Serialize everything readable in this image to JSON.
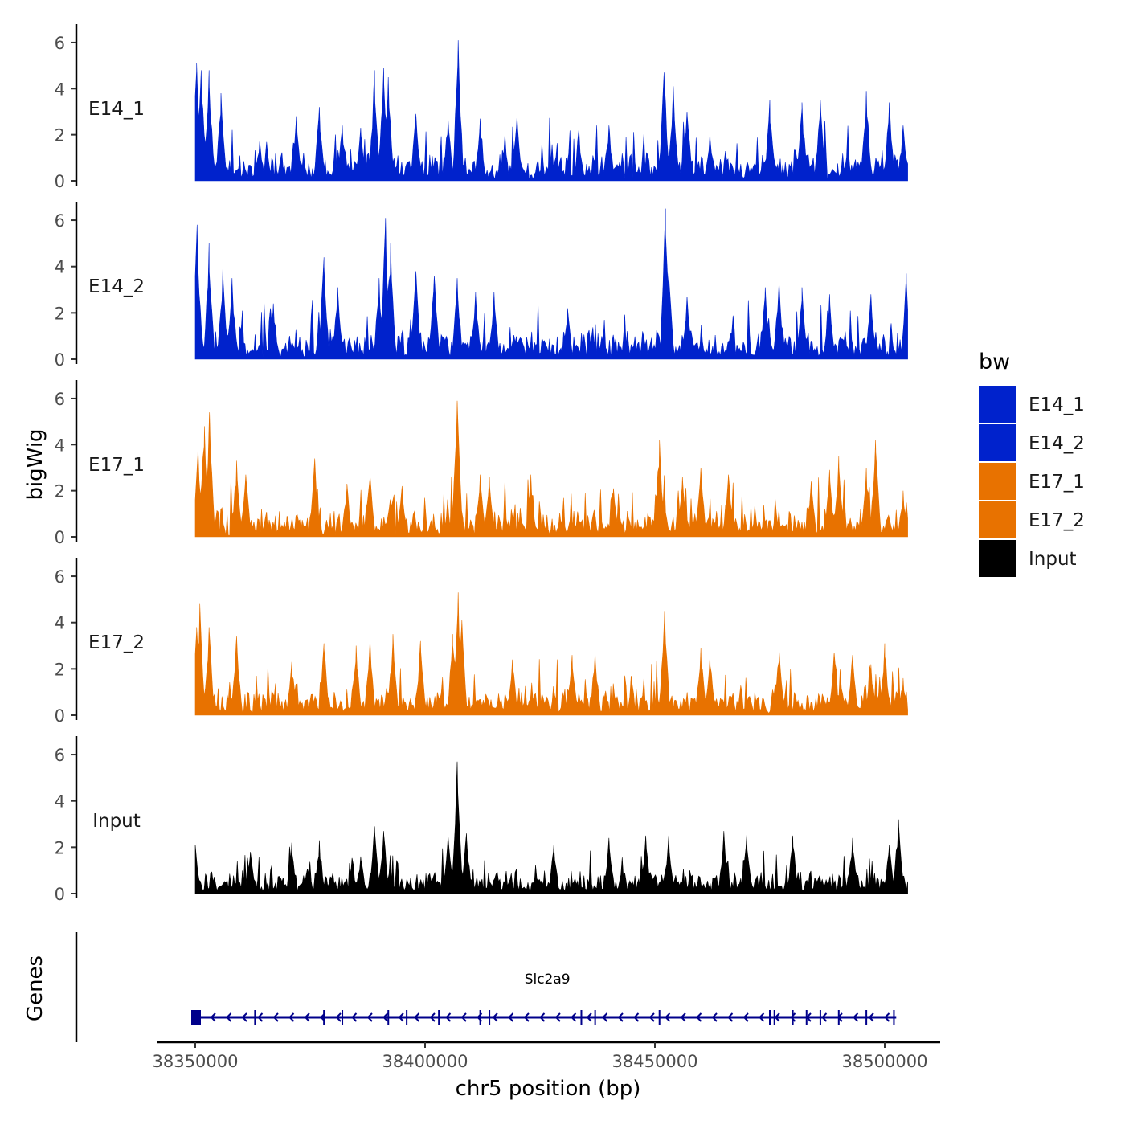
{
  "chart_data": {
    "type": "area",
    "chromosome": "chr5",
    "xlabel": "chr5 position (bp)",
    "ylabel": "bigWig",
    "genes_label": "Genes",
    "xlim": [
      38350000,
      38505000
    ],
    "x_ticks": [
      38350000,
      38400000,
      38450000,
      38500000
    ],
    "x_tick_labels": [
      "38350000",
      "38400000",
      "38450000",
      "38500000"
    ],
    "ylim": [
      0,
      6.8
    ],
    "y_ticks": [
      0,
      2,
      4,
      6
    ],
    "y_tick_labels": [
      "0",
      "2",
      "4",
      "6"
    ],
    "legend": {
      "title": "bw",
      "position": "right",
      "entries": [
        {
          "name": "E14_1",
          "color": "#0022CC"
        },
        {
          "name": "E14_2",
          "color": "#0022CC"
        },
        {
          "name": "E17_1",
          "color": "#E87200"
        },
        {
          "name": "E17_2",
          "color": "#E87200"
        },
        {
          "name": "Input",
          "color": "#000000"
        }
      ]
    },
    "tracks": [
      {
        "name": "E14_1",
        "color": "#0022CC",
        "base": 1.2,
        "seed": 11,
        "peaks": [
          {
            "x": 38350300,
            "y": 5.1
          },
          {
            "x": 38351300,
            "y": 4.8
          },
          {
            "x": 38353000,
            "y": 4.8
          },
          {
            "x": 38355600,
            "y": 3.8
          },
          {
            "x": 38364000,
            "y": 1.7
          },
          {
            "x": 38372000,
            "y": 2.8
          },
          {
            "x": 38377000,
            "y": 3.2
          },
          {
            "x": 38382000,
            "y": 2.4
          },
          {
            "x": 38386000,
            "y": 2.3
          },
          {
            "x": 38389000,
            "y": 4.8
          },
          {
            "x": 38391000,
            "y": 4.9
          },
          {
            "x": 38392000,
            "y": 4.5
          },
          {
            "x": 38398000,
            "y": 2.9
          },
          {
            "x": 38405000,
            "y": 2.7
          },
          {
            "x": 38407200,
            "y": 6.1
          },
          {
            "x": 38412000,
            "y": 2.7
          },
          {
            "x": 38420000,
            "y": 2.8
          },
          {
            "x": 38440000,
            "y": 2.4
          },
          {
            "x": 38452000,
            "y": 4.7
          },
          {
            "x": 38454000,
            "y": 4.1
          },
          {
            "x": 38457000,
            "y": 3.0
          },
          {
            "x": 38462000,
            "y": 2.1
          },
          {
            "x": 38475000,
            "y": 3.5
          },
          {
            "x": 38482000,
            "y": 3.4
          },
          {
            "x": 38486000,
            "y": 3.5
          },
          {
            "x": 38496000,
            "y": 3.9
          },
          {
            "x": 38501000,
            "y": 3.4
          },
          {
            "x": 38504000,
            "y": 2.4
          }
        ]
      },
      {
        "name": "E14_2",
        "color": "#0022CC",
        "base": 1.1,
        "seed": 23,
        "peaks": [
          {
            "x": 38350400,
            "y": 5.8
          },
          {
            "x": 38353000,
            "y": 5.0
          },
          {
            "x": 38356000,
            "y": 3.9
          },
          {
            "x": 38358000,
            "y": 3.5
          },
          {
            "x": 38367000,
            "y": 2.4
          },
          {
            "x": 38378000,
            "y": 4.4
          },
          {
            "x": 38381000,
            "y": 3.1
          },
          {
            "x": 38390000,
            "y": 3.5
          },
          {
            "x": 38391400,
            "y": 6.1
          },
          {
            "x": 38392500,
            "y": 5.0
          },
          {
            "x": 38398000,
            "y": 3.8
          },
          {
            "x": 38402000,
            "y": 3.6
          },
          {
            "x": 38407000,
            "y": 3.5
          },
          {
            "x": 38411000,
            "y": 2.9
          },
          {
            "x": 38415000,
            "y": 2.9
          },
          {
            "x": 38431000,
            "y": 2.2
          },
          {
            "x": 38452300,
            "y": 6.5
          },
          {
            "x": 38453000,
            "y": 3.7
          },
          {
            "x": 38457000,
            "y": 2.7
          },
          {
            "x": 38474000,
            "y": 3.1
          },
          {
            "x": 38477000,
            "y": 3.4
          },
          {
            "x": 38482000,
            "y": 3.1
          },
          {
            "x": 38488000,
            "y": 2.8
          },
          {
            "x": 38497000,
            "y": 2.8
          },
          {
            "x": 38504700,
            "y": 3.7
          }
        ]
      },
      {
        "name": "E17_1",
        "color": "#E87200",
        "base": 1.1,
        "seed": 37,
        "peaks": [
          {
            "x": 38350600,
            "y": 3.9
          },
          {
            "x": 38352000,
            "y": 4.8
          },
          {
            "x": 38353100,
            "y": 5.4
          },
          {
            "x": 38359000,
            "y": 3.3
          },
          {
            "x": 38361000,
            "y": 2.7
          },
          {
            "x": 38376000,
            "y": 3.4
          },
          {
            "x": 38383000,
            "y": 2.3
          },
          {
            "x": 38388000,
            "y": 2.7
          },
          {
            "x": 38395000,
            "y": 2.2
          },
          {
            "x": 38407000,
            "y": 5.9
          },
          {
            "x": 38412000,
            "y": 2.7
          },
          {
            "x": 38414000,
            "y": 2.6
          },
          {
            "x": 38423000,
            "y": 2.7
          },
          {
            "x": 38441000,
            "y": 2.1
          },
          {
            "x": 38451000,
            "y": 4.2
          },
          {
            "x": 38456000,
            "y": 2.6
          },
          {
            "x": 38460000,
            "y": 3.0
          },
          {
            "x": 38466000,
            "y": 2.7
          },
          {
            "x": 38484000,
            "y": 2.4
          },
          {
            "x": 38488000,
            "y": 2.9
          },
          {
            "x": 38490000,
            "y": 3.5
          },
          {
            "x": 38496000,
            "y": 3.0
          },
          {
            "x": 38498000,
            "y": 4.2
          },
          {
            "x": 38504000,
            "y": 2.0
          }
        ]
      },
      {
        "name": "E17_2",
        "color": "#E87200",
        "base": 1.1,
        "seed": 53,
        "peaks": [
          {
            "x": 38350300,
            "y": 3.8
          },
          {
            "x": 38351000,
            "y": 4.8
          },
          {
            "x": 38353000,
            "y": 3.8
          },
          {
            "x": 38359000,
            "y": 3.4
          },
          {
            "x": 38371000,
            "y": 2.3
          },
          {
            "x": 38378000,
            "y": 3.1
          },
          {
            "x": 38385000,
            "y": 3.0
          },
          {
            "x": 38388000,
            "y": 3.3
          },
          {
            "x": 38393000,
            "y": 3.5
          },
          {
            "x": 38399000,
            "y": 3.2
          },
          {
            "x": 38406000,
            "y": 3.5
          },
          {
            "x": 38407200,
            "y": 5.3
          },
          {
            "x": 38408000,
            "y": 4.1
          },
          {
            "x": 38419000,
            "y": 2.4
          },
          {
            "x": 38432000,
            "y": 2.6
          },
          {
            "x": 38437000,
            "y": 2.7
          },
          {
            "x": 38452100,
            "y": 4.5
          },
          {
            "x": 38460000,
            "y": 2.9
          },
          {
            "x": 38462000,
            "y": 2.6
          },
          {
            "x": 38477000,
            "y": 2.9
          },
          {
            "x": 38489000,
            "y": 2.7
          },
          {
            "x": 38493000,
            "y": 2.6
          },
          {
            "x": 38497000,
            "y": 2.2
          },
          {
            "x": 38500000,
            "y": 3.1
          },
          {
            "x": 38504000,
            "y": 1.6
          }
        ]
      },
      {
        "name": "Input",
        "color": "#000000",
        "base": 0.9,
        "seed": 71,
        "peaks": [
          {
            "x": 38350000,
            "y": 2.1
          },
          {
            "x": 38362000,
            "y": 1.8
          },
          {
            "x": 38371000,
            "y": 2.2
          },
          {
            "x": 38377000,
            "y": 2.3
          },
          {
            "x": 38386000,
            "y": 1.6
          },
          {
            "x": 38389000,
            "y": 2.9
          },
          {
            "x": 38391000,
            "y": 2.7
          },
          {
            "x": 38405000,
            "y": 2.5
          },
          {
            "x": 38407000,
            "y": 5.7
          },
          {
            "x": 38409000,
            "y": 2.6
          },
          {
            "x": 38428000,
            "y": 2.1
          },
          {
            "x": 38440000,
            "y": 2.4
          },
          {
            "x": 38448000,
            "y": 2.5
          },
          {
            "x": 38453000,
            "y": 2.5
          },
          {
            "x": 38465000,
            "y": 2.7
          },
          {
            "x": 38470000,
            "y": 2.6
          },
          {
            "x": 38480000,
            "y": 2.5
          },
          {
            "x": 38493000,
            "y": 2.4
          },
          {
            "x": 38501000,
            "y": 2.1
          },
          {
            "x": 38503000,
            "y": 3.2
          }
        ]
      }
    ],
    "genes": [
      {
        "name": "Slc2a9",
        "strand": "-",
        "color": "#00008B",
        "start": 38350000,
        "end": 38502500,
        "exons": [
          38350000,
          38363000,
          38378000,
          38382000,
          38392000,
          38396000,
          38403000,
          38412000,
          38414000,
          38434000,
          38437000,
          38451000,
          38475000,
          38476000,
          38480000,
          38483000,
          38486000,
          38490000,
          38496000,
          38502000
        ]
      }
    ]
  }
}
